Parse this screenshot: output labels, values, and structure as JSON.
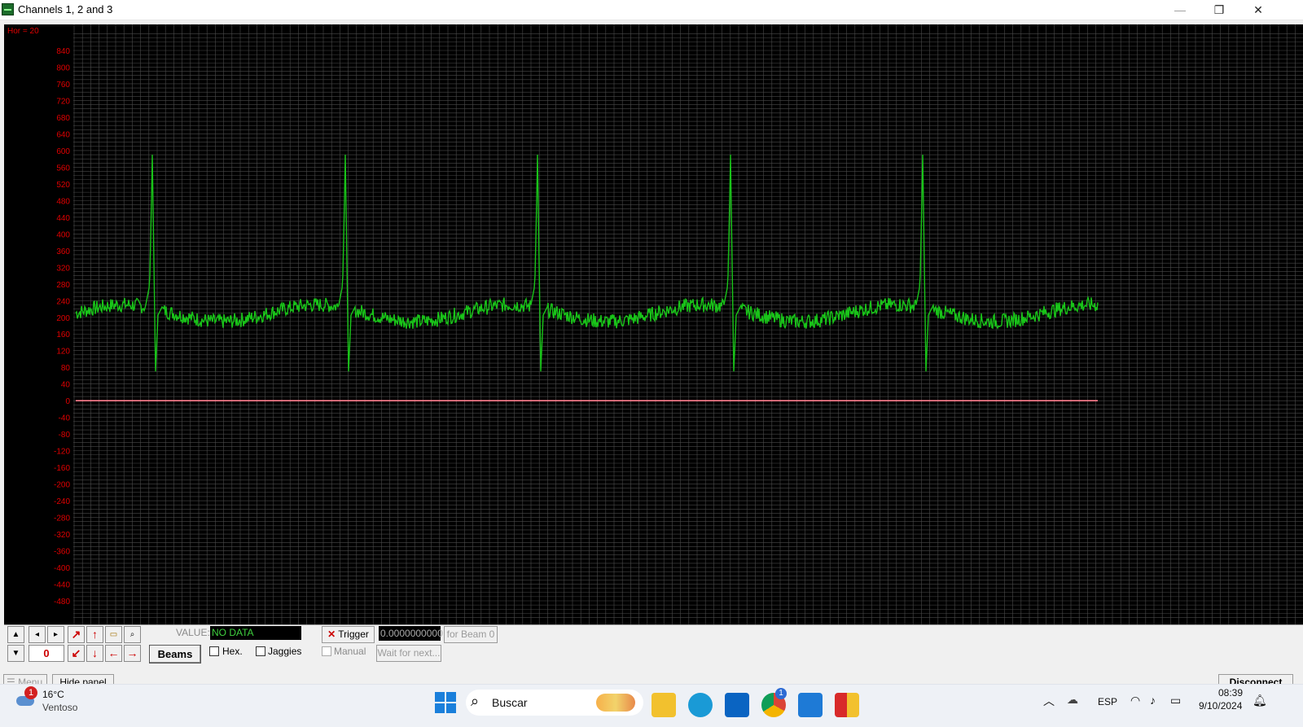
{
  "window": {
    "title": "Channels 1, 2 and 3",
    "minimize": "—",
    "maximize": "❐",
    "close": "✕"
  },
  "scope": {
    "hor_label": "Hor = 20",
    "y_ticks": [
      840,
      800,
      760,
      720,
      680,
      640,
      600,
      560,
      520,
      480,
      440,
      400,
      360,
      320,
      280,
      240,
      200,
      160,
      120,
      80,
      40,
      0,
      -40,
      -80,
      -120,
      -160,
      -200,
      -240,
      -280,
      -320,
      -360,
      -400,
      -440,
      -480
    ],
    "colors": {
      "grid": "#4a4a4a",
      "trace": "#19c419",
      "baseline": "#ff7f8f",
      "tick_label": "#e00000"
    }
  },
  "chart_data": {
    "type": "line",
    "title": "",
    "xlabel": "",
    "ylabel": "",
    "ylim": [
      -500,
      860
    ],
    "grid": true,
    "series": [
      {
        "values_description": "",
        "beats": 5,
        "peak": 590,
        "trough": 70,
        "baseline_level": 210
      },
      {
        "values": [
          0
        ],
        "level": 0
      }
    ]
  },
  "panel": {
    "value_label": "VALUE:",
    "value_text": "NO DATA",
    "zero_value": "0",
    "beams_label": "Beams",
    "trigger_label": "Trigger",
    "trigger_value": "0.0000000000",
    "for_beam_label": "for Beam 0",
    "hex_label": "Hex.",
    "jaggies_label": "Jaggies",
    "manual_label": "Manual",
    "wait_label": "Wait for next..."
  },
  "bottom": {
    "menu_label": "Menu",
    "hide_panel_label": "Hide panel",
    "disconnect_label": "Disconnect"
  },
  "taskbar": {
    "weather_temp": "16°C",
    "weather_desc": "Ventoso",
    "weather_badge": "1",
    "search_placeholder": "Buscar",
    "chrome_badge": "1",
    "lang": "ESP",
    "time": "08:39",
    "date": "9/10/2024"
  }
}
